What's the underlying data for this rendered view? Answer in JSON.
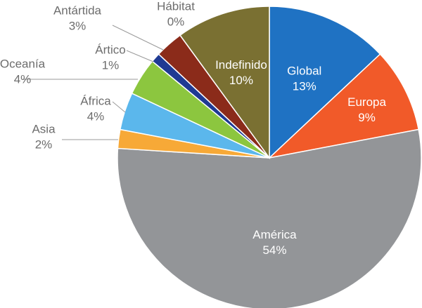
{
  "chart_data": {
    "type": "pie",
    "title": "",
    "start_angle_deg": 0,
    "direction": "clockwise",
    "slices": [
      {
        "label": "Global",
        "value": 13,
        "value_label": "13%",
        "color": "#1f72c3",
        "label_pos": "inside"
      },
      {
        "label": "Europa",
        "value": 9,
        "value_label": "9%",
        "color": "#f15a29",
        "label_pos": "inside"
      },
      {
        "label": "América",
        "value": 54,
        "value_label": "54%",
        "color": "#939598",
        "label_pos": "inside"
      },
      {
        "label": "Asia",
        "value": 2,
        "value_label": "2%",
        "color": "#f7a937",
        "label_pos": "outside"
      },
      {
        "label": "África",
        "value": 4,
        "value_label": "4%",
        "color": "#5bb7ec",
        "label_pos": "outside"
      },
      {
        "label": "Oceanía",
        "value": 4,
        "value_label": "4%",
        "color": "#8cc63f",
        "label_pos": "outside"
      },
      {
        "label": "Ártico",
        "value": 1,
        "value_label": "1%",
        "color": "#1f3a93",
        "label_pos": "outside"
      },
      {
        "label": "Antártida",
        "value": 3,
        "value_label": "3%",
        "color": "#8b2b1a",
        "label_pos": "outside"
      },
      {
        "label": "Hábitat",
        "value": 0,
        "value_label": "0%",
        "color": "#6b6b2a",
        "label_pos": "outside"
      },
      {
        "label": "Indefinido",
        "value": 10,
        "value_label": "10%",
        "color": "#7a7032",
        "label_pos": "inside"
      }
    ]
  }
}
